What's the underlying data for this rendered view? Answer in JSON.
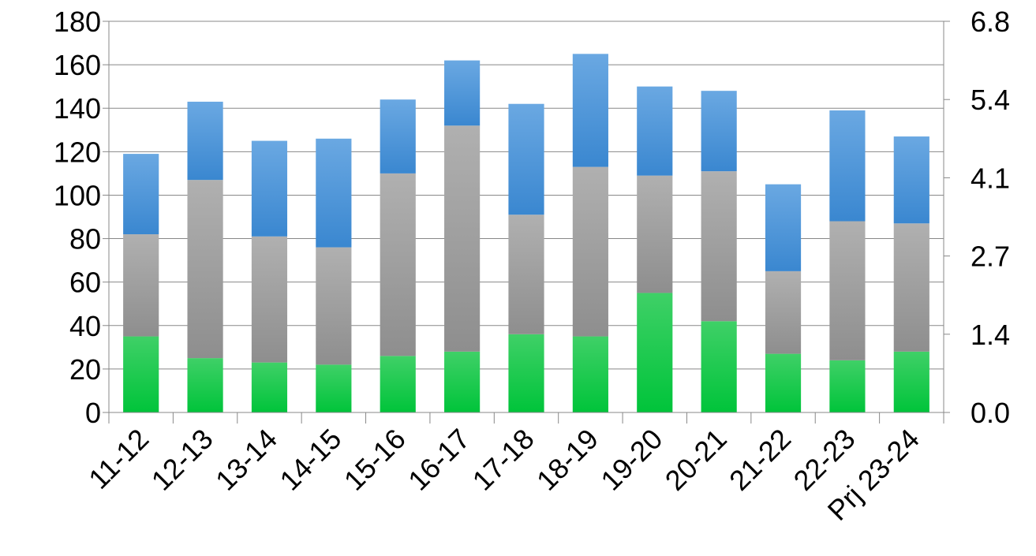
{
  "chart_data": {
    "type": "bar",
    "stacked": true,
    "categories": [
      "11-12",
      "12-13",
      "13-14",
      "14-15",
      "15-16",
      "16-17",
      "17-18",
      "18-19",
      "19-20",
      "20-21",
      "21-22",
      "22-23",
      "Prj 23-24"
    ],
    "series": [
      {
        "values": [
          35,
          25,
          23,
          22,
          26,
          28,
          36,
          35,
          55,
          42,
          27,
          24,
          28
        ],
        "color": "#1bc94a"
      },
      {
        "values": [
          47,
          82,
          58,
          54,
          84,
          104,
          55,
          78,
          54,
          69,
          38,
          64,
          59
        ],
        "color": "#9c9c9c"
      },
      {
        "values": [
          37,
          36,
          44,
          50,
          34,
          30,
          51,
          52,
          41,
          37,
          40,
          51,
          40
        ],
        "color": "#4d94d6"
      }
    ],
    "y_left": {
      "min": 0,
      "max": 180,
      "ticks": [
        "0",
        "20",
        "40",
        "60",
        "80",
        "100",
        "120",
        "140",
        "160",
        "180"
      ]
    },
    "y_right": {
      "ticks": [
        "0.0",
        "1.4",
        "2.7",
        "4.1",
        "5.4",
        "6.8"
      ]
    },
    "grid": true,
    "legend": "none",
    "title": "",
    "xlabel": "",
    "ylabel": ""
  }
}
